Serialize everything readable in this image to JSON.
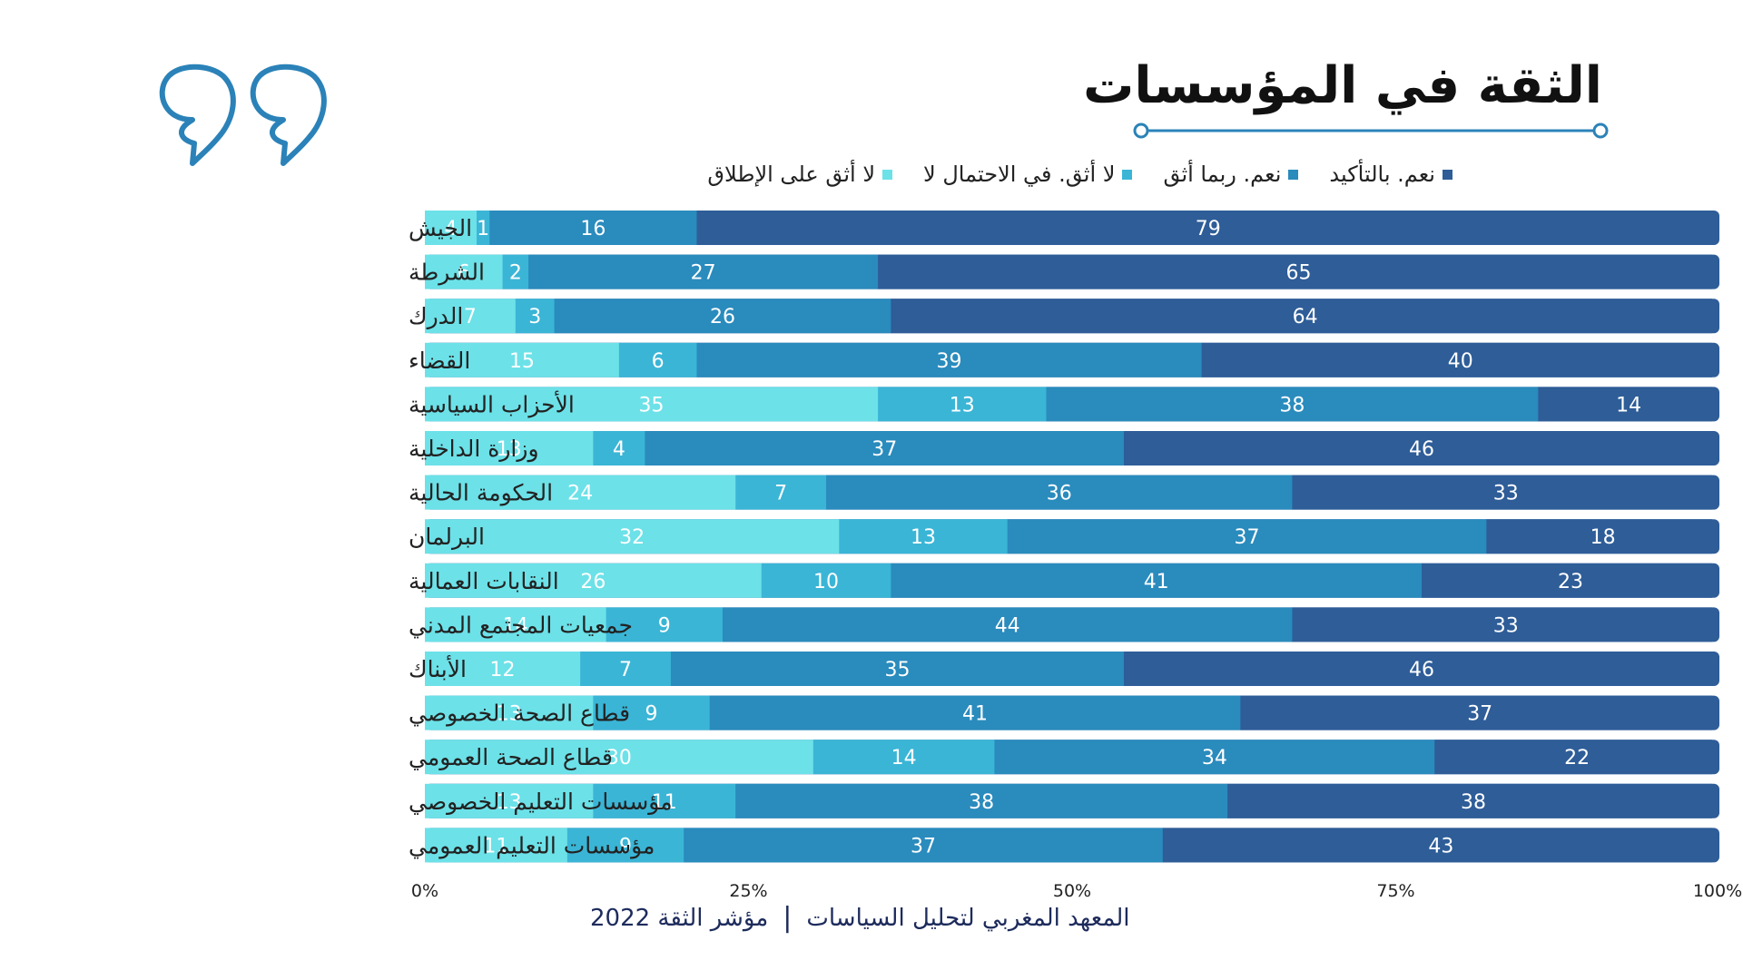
{
  "title": "الثقة في المؤسسات",
  "footer": {
    "institute": "المعهد المغربي لتحليل السياسات",
    "separator": "|",
    "index": "مؤشر الثقة 2022"
  },
  "colors": {
    "accent": "#2b82b8",
    "title_line": "#2b82b8"
  },
  "icons": {
    "quote": "closing-quote-icon"
  },
  "chart_data": {
    "type": "bar",
    "orientation": "horizontal",
    "stacked": "percent",
    "title": "الثقة في المؤسسات",
    "legend_position": "top",
    "categories": [
      "الجيش",
      "الشرطة",
      "الدرك",
      "القضاء",
      "الأحزاب السياسية",
      "وزارة الداخلية",
      "الحكومة الحالية",
      "البرلمان",
      "النقابات العمالية",
      "جمعيات المجتمع المدني",
      "الأبناك",
      "قطاع الصحة الخصوصي",
      "قطاع الصحة العمومي",
      "مؤسسات التعليم الخصوصي",
      "مؤسسات التعليم العمومي"
    ],
    "series": [
      {
        "name": "لا أثق على الإطلاق",
        "color": "#6ce1e8",
        "values": [
          4,
          6,
          7,
          15,
          35,
          13,
          24,
          32,
          26,
          14,
          12,
          13,
          30,
          13,
          11
        ]
      },
      {
        "name": "لا أثق. في الاحتمال لا",
        "color": "#3ab5d6",
        "values": [
          1,
          2,
          3,
          6,
          13,
          4,
          7,
          13,
          10,
          9,
          7,
          9,
          14,
          11,
          9
        ]
      },
      {
        "name": "نعم. ربما أثق",
        "color": "#2a8bbd",
        "values": [
          16,
          27,
          26,
          39,
          38,
          37,
          36,
          37,
          41,
          44,
          35,
          41,
          34,
          38,
          37
        ]
      },
      {
        "name": "نعم. بالتأكيد",
        "color": "#2e5d98",
        "values": [
          79,
          65,
          64,
          40,
          14,
          46,
          33,
          18,
          23,
          33,
          46,
          37,
          22,
          38,
          43
        ]
      }
    ],
    "legend_order": [
      "نعم. بالتأكيد",
      "نعم. ربما أثق",
      "لا أثق. في الاحتمال لا",
      "لا أثق على الإطلاق"
    ],
    "x_ticks": [
      "0%",
      "25%",
      "50%",
      "75%",
      "100%"
    ],
    "xlim": [
      0,
      100
    ],
    "grid": false
  }
}
